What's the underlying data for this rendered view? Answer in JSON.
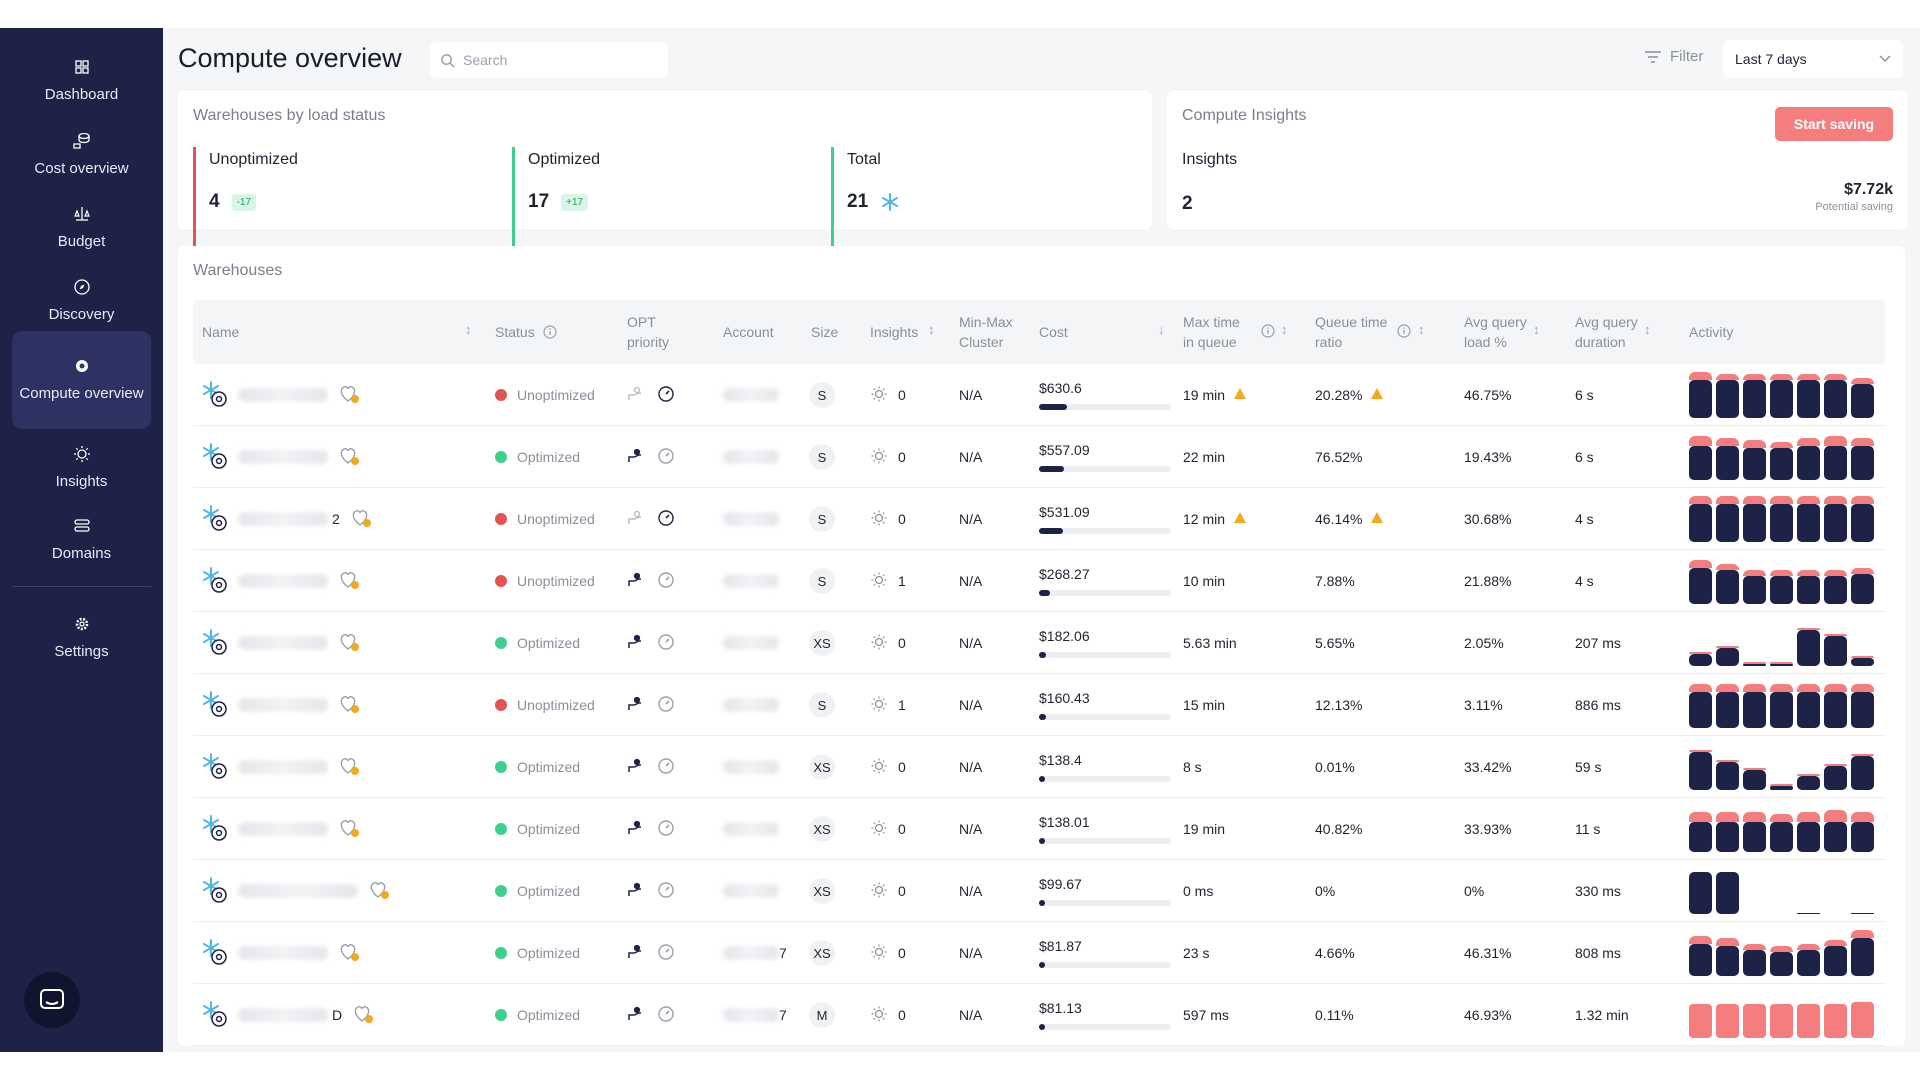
{
  "sidebar": {
    "items": [
      {
        "label": "Dashboard",
        "icon": "grid-icon",
        "active": false
      },
      {
        "label": "Cost overview",
        "icon": "coins-icon",
        "active": false
      },
      {
        "label": "Budget",
        "icon": "scale-icon",
        "active": false
      },
      {
        "label": "Discovery",
        "icon": "compass-icon",
        "active": false
      },
      {
        "label": "Compute overview",
        "icon": "cpu-icon",
        "active": true
      },
      {
        "label": "Insights",
        "icon": "lightbulb-icon",
        "active": false
      },
      {
        "label": "Domains",
        "icon": "database-icon",
        "active": false
      },
      {
        "label": "Settings",
        "icon": "gear-icon",
        "active": false
      }
    ]
  },
  "header": {
    "title": "Compute overview",
    "search_placeholder": "Search",
    "filter_label": "Filter",
    "range_label": "Last 7 days"
  },
  "load_status": {
    "title": "Warehouses by load status",
    "stats": [
      {
        "label": "Unoptimized",
        "value": "4",
        "delta": "-17",
        "color": "#e05454"
      },
      {
        "label": "Optimized",
        "value": "17",
        "delta": "+17",
        "color": "#3ccf8e"
      },
      {
        "label": "Total",
        "value": "21",
        "delta": "",
        "color": "#3ccf8e"
      }
    ]
  },
  "insights_card": {
    "title": "Compute Insights",
    "button_label": "Start saving",
    "insights_label": "Insights",
    "insights_value": "2",
    "saving_value": "$7.72k",
    "saving_label": "Potential saving"
  },
  "warehouses": {
    "title": "Warehouses",
    "columns": {
      "name": "Name",
      "status": "Status",
      "opt_priority": [
        "OPT",
        "priority"
      ],
      "account": "Account",
      "size": "Size",
      "insights": "Insights",
      "min_max_cluster": [
        "Min-Max",
        "Cluster"
      ],
      "cost": "Cost",
      "max_time_in_queue": [
        "Max time",
        "in queue"
      ],
      "queue_time_ratio": [
        "Queue time",
        "ratio"
      ],
      "avg_query_load": [
        "Avg query",
        "load %"
      ],
      "avg_query_duration": [
        "Avg query",
        "duration"
      ],
      "activity": "Activity"
    },
    "rows": [
      {
        "name_suffix": "",
        "status": "Unoptimized",
        "size": "S",
        "insights": "0",
        "cluster": "N/A",
        "cost": "$630.6",
        "cost_pct": 0.2,
        "max_queue": "19 min",
        "max_queue_warn": true,
        "queue_ratio": "20.28%",
        "queue_ratio_warn": true,
        "load": "46.75%",
        "duration": "6 s",
        "account_suffix": "",
        "activity": [
          [
            8,
            38
          ],
          [
            6,
            38
          ],
          [
            6,
            38
          ],
          [
            6,
            38
          ],
          [
            6,
            38
          ],
          [
            6,
            38
          ],
          [
            6,
            34
          ]
        ]
      },
      {
        "name_suffix": "",
        "status": "Optimized",
        "size": "S",
        "insights": "0",
        "cluster": "N/A",
        "cost": "$557.09",
        "cost_pct": 0.18,
        "max_queue": "22 min",
        "max_queue_warn": false,
        "queue_ratio": "76.52%",
        "queue_ratio_warn": false,
        "load": "19.43%",
        "duration": "6 s",
        "account_suffix": "",
        "activity": [
          [
            10,
            34
          ],
          [
            8,
            34
          ],
          [
            8,
            32
          ],
          [
            6,
            32
          ],
          [
            8,
            34
          ],
          [
            10,
            34
          ],
          [
            8,
            34
          ]
        ]
      },
      {
        "name_suffix": "2",
        "status": "Unoptimized",
        "size": "S",
        "insights": "0",
        "cluster": "N/A",
        "cost": "$531.09",
        "cost_pct": 0.17,
        "max_queue": "12 min",
        "max_queue_warn": true,
        "queue_ratio": "46.14%",
        "queue_ratio_warn": true,
        "load": "30.68%",
        "duration": "4 s",
        "account_suffix": "",
        "activity": [
          [
            8,
            38
          ],
          [
            8,
            38
          ],
          [
            8,
            38
          ],
          [
            8,
            38
          ],
          [
            8,
            38
          ],
          [
            8,
            38
          ],
          [
            8,
            38
          ]
        ]
      },
      {
        "name_suffix": "",
        "status": "Unoptimized",
        "size": "S",
        "insights": "1",
        "cluster": "N/A",
        "cost": "$268.27",
        "cost_pct": 0.08,
        "max_queue": "10 min",
        "max_queue_warn": false,
        "queue_ratio": "7.88%",
        "queue_ratio_warn": false,
        "load": "21.88%",
        "duration": "4 s",
        "account_suffix": "",
        "activity": [
          [
            8,
            36
          ],
          [
            6,
            34
          ],
          [
            6,
            28
          ],
          [
            6,
            28
          ],
          [
            6,
            28
          ],
          [
            6,
            28
          ],
          [
            6,
            30
          ]
        ]
      },
      {
        "name_suffix": "",
        "status": "Optimized",
        "size": "XS",
        "insights": "0",
        "cluster": "N/A",
        "cost": "$182.06",
        "cost_pct": 0.05,
        "max_queue": "5.63 min",
        "max_queue_warn": false,
        "queue_ratio": "5.65%",
        "queue_ratio_warn": false,
        "load": "2.05%",
        "duration": "207 ms",
        "account_suffix": "",
        "activity": [
          [
            2,
            12
          ],
          [
            2,
            18
          ],
          [
            2,
            2
          ],
          [
            2,
            2
          ],
          [
            2,
            36
          ],
          [
            2,
            30
          ],
          [
            2,
            8
          ]
        ]
      },
      {
        "name_suffix": "",
        "status": "Unoptimized",
        "size": "S",
        "insights": "1",
        "cluster": "N/A",
        "cost": "$160.43",
        "cost_pct": 0.05,
        "max_queue": "15 min",
        "max_queue_warn": false,
        "queue_ratio": "12.13%",
        "queue_ratio_warn": false,
        "load": "3.11%",
        "duration": "886 ms",
        "account_suffix": "",
        "activity": [
          [
            8,
            36
          ],
          [
            8,
            36
          ],
          [
            8,
            36
          ],
          [
            8,
            36
          ],
          [
            8,
            36
          ],
          [
            8,
            36
          ],
          [
            8,
            36
          ]
        ]
      },
      {
        "name_suffix": "",
        "status": "Optimized",
        "size": "XS",
        "insights": "0",
        "cluster": "N/A",
        "cost": "$138.4",
        "cost_pct": 0.04,
        "max_queue": "8 s",
        "max_queue_warn": false,
        "queue_ratio": "0.01%",
        "queue_ratio_warn": false,
        "load": "33.42%",
        "duration": "59 s",
        "account_suffix": "",
        "activity": [
          [
            2,
            38
          ],
          [
            2,
            28
          ],
          [
            2,
            20
          ],
          [
            2,
            4
          ],
          [
            2,
            14
          ],
          [
            2,
            24
          ],
          [
            2,
            34
          ]
        ]
      },
      {
        "name_suffix": "",
        "status": "Optimized",
        "size": "XS",
        "insights": "0",
        "cluster": "N/A",
        "cost": "$138.01",
        "cost_pct": 0.04,
        "max_queue": "19 min",
        "max_queue_warn": false,
        "queue_ratio": "40.82%",
        "queue_ratio_warn": false,
        "load": "33.93%",
        "duration": "11 s",
        "account_suffix": "",
        "activity": [
          [
            10,
            30
          ],
          [
            10,
            30
          ],
          [
            10,
            30
          ],
          [
            8,
            30
          ],
          [
            10,
            30
          ],
          [
            12,
            30
          ],
          [
            10,
            30
          ]
        ]
      },
      {
        "name_suffix": "",
        "status": "Optimized",
        "size": "XS",
        "insights": "0",
        "cluster": "N/A",
        "cost": "$99.67",
        "cost_pct": 0.03,
        "max_queue": "0 ms",
        "max_queue_warn": false,
        "queue_ratio": "0%",
        "queue_ratio_warn": false,
        "load": "0%",
        "duration": "330 ms",
        "account_suffix": "",
        "activity": [
          [
            0,
            42
          ],
          [
            0,
            42
          ],
          [
            0,
            0
          ],
          [
            0,
            0
          ],
          [
            0,
            1
          ],
          [
            0,
            0
          ],
          [
            0,
            1
          ]
        ]
      },
      {
        "name_suffix": "",
        "status": "Optimized",
        "size": "XS",
        "insights": "0",
        "cluster": "N/A",
        "cost": "$81.87",
        "cost_pct": 0.02,
        "max_queue": "23 s",
        "max_queue_warn": false,
        "queue_ratio": "4.66%",
        "queue_ratio_warn": false,
        "load": "46.31%",
        "duration": "808 ms",
        "account_suffix": "7",
        "activity": [
          [
            8,
            32
          ],
          [
            8,
            30
          ],
          [
            6,
            26
          ],
          [
            6,
            24
          ],
          [
            6,
            26
          ],
          [
            6,
            30
          ],
          [
            8,
            38
          ]
        ]
      },
      {
        "name_suffix": "D",
        "status": "Optimized",
        "size": "M",
        "insights": "0",
        "cluster": "N/A",
        "cost": "$81.13",
        "cost_pct": 0.02,
        "max_queue": "597 ms",
        "max_queue_warn": false,
        "queue_ratio": "0.11%",
        "queue_ratio_warn": false,
        "load": "46.93%",
        "duration": "1.32 min",
        "account_suffix": "7",
        "activity": [
          [
            34,
            0
          ],
          [
            34,
            0
          ],
          [
            34,
            0
          ],
          [
            34,
            0
          ],
          [
            34,
            0
          ],
          [
            34,
            0
          ],
          [
            36,
            0
          ]
        ]
      }
    ]
  },
  "colors": {
    "sidebar_bg": "#1e2247",
    "accent_red": "#f47d7d",
    "unoptimized": "#e05454",
    "optimized": "#3ccf8e",
    "warning": "#f2a91e"
  }
}
